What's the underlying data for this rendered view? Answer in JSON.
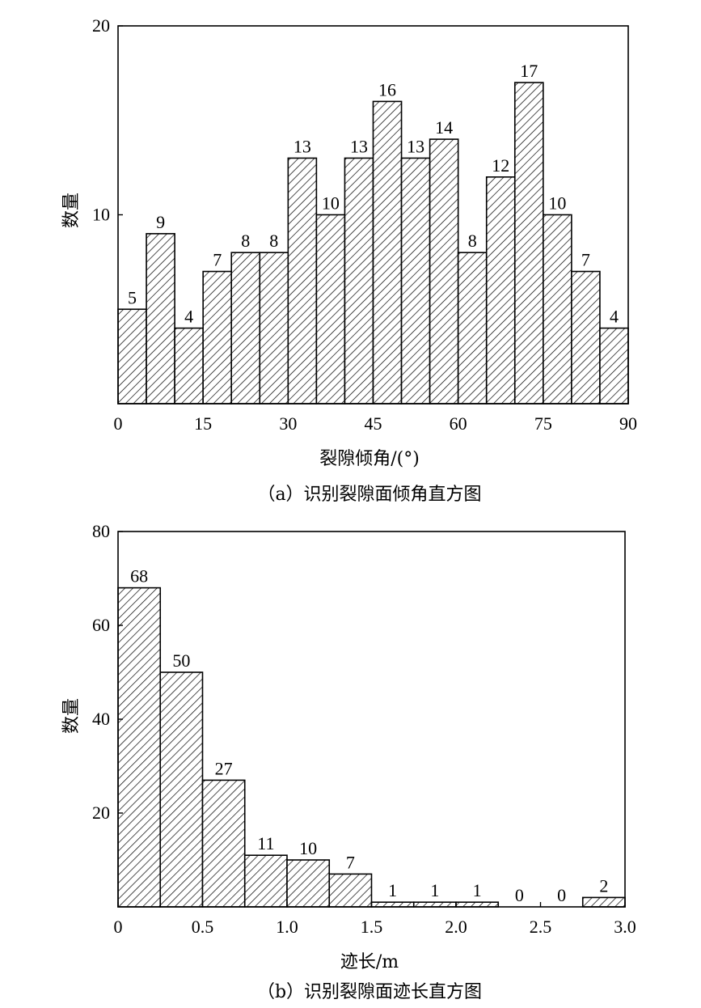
{
  "chart_data": [
    {
      "type": "bar",
      "xlabel": "裂隙倾角/(°)",
      "ylabel": "数量",
      "caption": "（a）识别裂隙面倾角直方图",
      "ylim": [
        0,
        20
      ],
      "yticks": [
        10,
        20
      ],
      "xlim": [
        0,
        90
      ],
      "xticks": [
        0,
        15,
        30,
        45,
        60,
        75,
        90
      ],
      "bin_width": 5,
      "bin_starts": [
        0,
        5,
        10,
        15,
        20,
        25,
        30,
        35,
        40,
        45,
        50,
        55,
        60,
        65,
        70,
        75,
        80,
        85
      ],
      "values": [
        5,
        9,
        4,
        7,
        8,
        8,
        13,
        10,
        13,
        16,
        13,
        14,
        8,
        12,
        17,
        10,
        7,
        4
      ],
      "y_tick_labels": [
        "10",
        "20"
      ],
      "x_tick_labels": [
        "0",
        "15",
        "30",
        "45",
        "60",
        "75",
        "90"
      ],
      "value_labels": [
        "5",
        "9",
        "4",
        "7",
        "8",
        "8",
        "13",
        "10",
        "13",
        "16",
        "13",
        "14",
        "8",
        "12",
        "17",
        "10",
        "7",
        "4"
      ]
    },
    {
      "type": "bar",
      "xlabel": "迹长/m",
      "ylabel": "数量",
      "caption": "（b）识别裂隙面迹长直方图",
      "ylim": [
        0,
        80
      ],
      "yticks": [
        20,
        40,
        60,
        80
      ],
      "xlim": [
        0,
        3.0
      ],
      "xticks": [
        0,
        0.5,
        1.0,
        1.5,
        2.0,
        2.5,
        3.0
      ],
      "bin_width": 0.25,
      "bin_starts": [
        0,
        0.25,
        0.5,
        0.75,
        1.0,
        1.25,
        1.5,
        1.75,
        2.0,
        2.25,
        2.5,
        2.75
      ],
      "values": [
        68,
        50,
        27,
        11,
        10,
        7,
        1,
        1,
        1,
        0,
        0,
        2
      ],
      "y_tick_labels": [
        "20",
        "40",
        "60",
        "80"
      ],
      "x_tick_labels": [
        "0",
        "0.5",
        "1.0",
        "1.5",
        "2.0",
        "2.5",
        "3.0"
      ],
      "value_labels": [
        "68",
        "50",
        "27",
        "11",
        "10",
        "7",
        "1",
        "1",
        "1",
        "0",
        "0",
        "2"
      ]
    }
  ]
}
